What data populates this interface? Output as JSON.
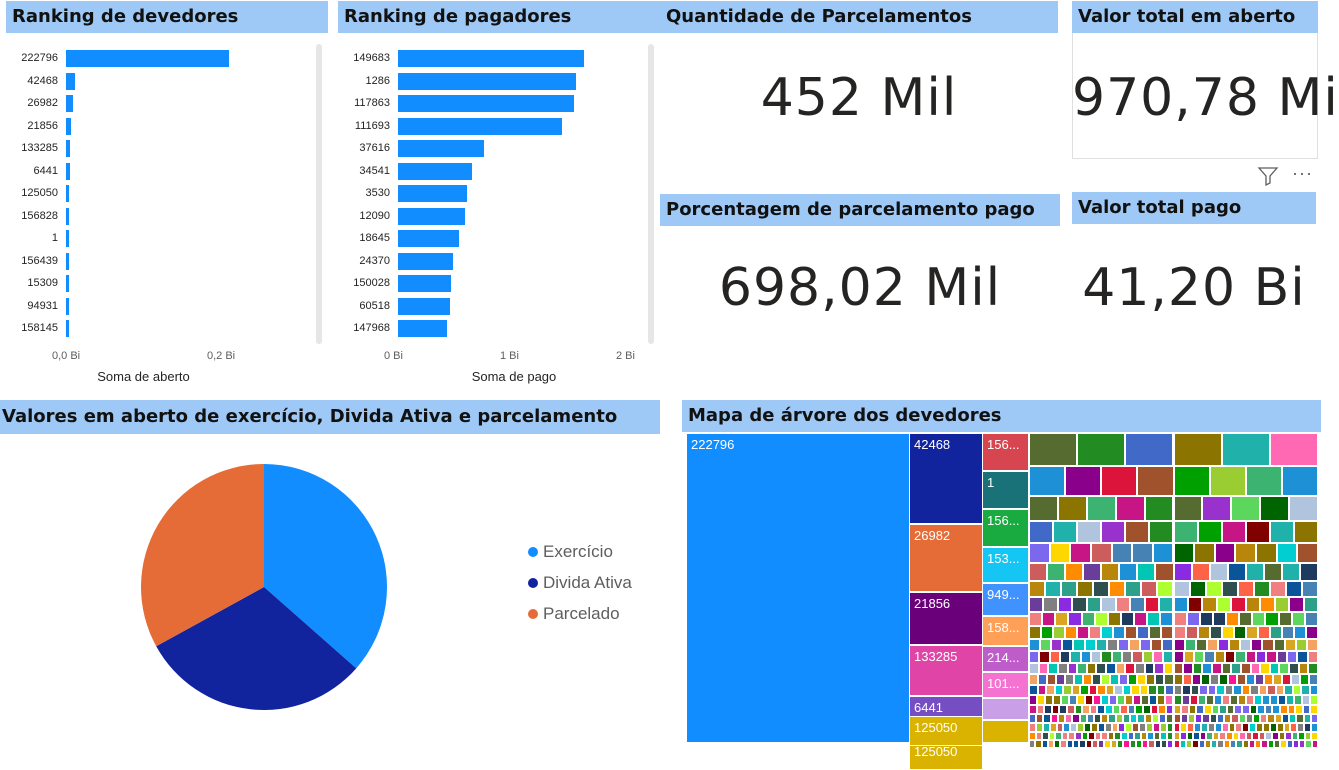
{
  "headers": {
    "devedores": "Ranking de devedores",
    "pagadores": "Ranking de pagadores",
    "quantidade": "Quantidade de Parcelamentos",
    "valor_aberto": "Valor total em aberto",
    "porcentagem": "Porcentagem de parcelamento pago",
    "valor_pago": "Valor total pago",
    "pie": "Valores em aberto de exercício, Divida Ativa e parcelamento",
    "treemap": "Mapa de árvore dos devedores"
  },
  "kpis": {
    "quantidade": "452 Mil",
    "valor_aberto": "970,78 Mi",
    "porcentagem": "698,02 Mil",
    "valor_pago": "41,20 Bi"
  },
  "chart_data": [
    {
      "type": "bar",
      "title": "Ranking de devedores",
      "orientation": "horizontal",
      "categories": [
        "222796",
        "42468",
        "26982",
        "21856",
        "133285",
        "6441",
        "125050",
        "156828",
        "1",
        "156439",
        "15309",
        "94931",
        "158145"
      ],
      "values": [
        0.21,
        0.012,
        0.009,
        0.007,
        0.005,
        0.005,
        0.004,
        0.004,
        0.004,
        0.004,
        0.003,
        0.003,
        0.003
      ],
      "xlabel": "Soma de aberto",
      "xticks": [
        "0,0 Bi",
        "0,2 Bi"
      ],
      "xlim": [
        0,
        0.2
      ],
      "color": "#118dff"
    },
    {
      "type": "bar",
      "title": "Ranking de pagadores",
      "orientation": "horizontal",
      "categories": [
        "149683",
        "1286",
        "117863",
        "111693",
        "37616",
        "34541",
        "3530",
        "12090",
        "18645",
        "24370",
        "150028",
        "60518",
        "147968"
      ],
      "values": [
        1.62,
        1.55,
        1.53,
        1.43,
        0.75,
        0.64,
        0.6,
        0.58,
        0.53,
        0.48,
        0.46,
        0.45,
        0.43
      ],
      "xlabel": "Soma de pago",
      "xticks": [
        "0 Bi",
        "1 Bi",
        "2 Bi"
      ],
      "xlim": [
        0,
        2
      ],
      "color": "#118dff"
    },
    {
      "type": "pie",
      "title": "Valores em aberto de exercício, Divida Ativa e parcelamento",
      "labels": [
        "Exercício",
        "Divida Ativa",
        "Parcelado"
      ],
      "values": [
        36.5,
        30.5,
        33.0
      ],
      "colors": [
        "#118dff",
        "#12239e",
        "#e66c37"
      ]
    },
    {
      "type": "treemap",
      "title": "Mapa de árvore dos devedores",
      "labels": [
        "222796",
        "42468",
        "26982",
        "21856",
        "133285",
        "6441",
        "125050",
        "156...",
        "1",
        "156...",
        "153...",
        "949...",
        "158...",
        "214...",
        "101..."
      ],
      "colors": [
        "#118dff",
        "#12239e",
        "#e66c37",
        "#6b007b",
        "#e044a7",
        "#744ec2",
        "#d9b300",
        "#d64550",
        "#197278",
        "#1aab40",
        "#15c6f4",
        "#4092ff",
        "#ffa058",
        "#be5dc9",
        "#f472d0"
      ]
    }
  ]
}
